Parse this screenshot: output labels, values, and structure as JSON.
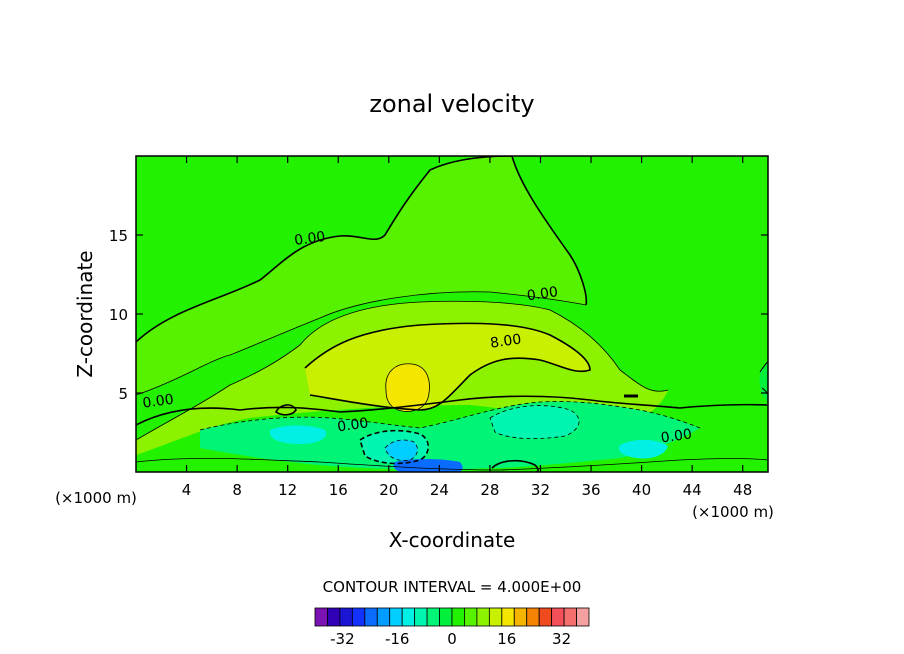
{
  "chart_data": {
    "type": "heatmap",
    "title": "zonal velocity",
    "xlabel": "X-coordinate",
    "ylabel": "Z-coordinate",
    "x_unit_label": "(×1000 m)",
    "x_unit_label_right": "(×1000 m)",
    "xlim": [
      0,
      50
    ],
    "ylim": [
      0,
      20
    ],
    "x_ticks": [
      4,
      8,
      12,
      16,
      20,
      24,
      28,
      32,
      36,
      40,
      44,
      48
    ],
    "y_ticks": [
      5,
      10,
      15
    ],
    "contour_interval_label": "CONTOUR INTERVAL = 4.000E+00",
    "contour_labels": [
      {
        "text": "0.00",
        "x": 13.8,
        "y": 14.5
      },
      {
        "text": "0.00",
        "x": 32.2,
        "y": 11.0
      },
      {
        "text": "8.00",
        "x": 29.3,
        "y": 8.0
      },
      {
        "text": "0.00",
        "x": 1.8,
        "y": 4.2
      },
      {
        "text": "0.00",
        "x": 17.2,
        "y": 2.7
      },
      {
        "text": "0.00",
        "x": 42.8,
        "y": 2.0
      }
    ],
    "colorbar": {
      "min": -40,
      "max": 40,
      "step": 4,
      "tick_labels": [
        "-32",
        "-16",
        "0",
        "16",
        "32"
      ],
      "tick_values": [
        -32,
        -16,
        0,
        16,
        32
      ],
      "colors": [
        "#7a12b4",
        "#3000b4",
        "#1a16d4",
        "#1432ff",
        "#0a6cff",
        "#009cff",
        "#00ceff",
        "#00f0e6",
        "#00f5b0",
        "#00f576",
        "#00f03c",
        "#22f200",
        "#56f200",
        "#8cf200",
        "#c8f000",
        "#f5e600",
        "#f5b400",
        "#f58200",
        "#f04b1e",
        "#f5505a",
        "#f56e6e",
        "#f5a0a0"
      ]
    }
  }
}
